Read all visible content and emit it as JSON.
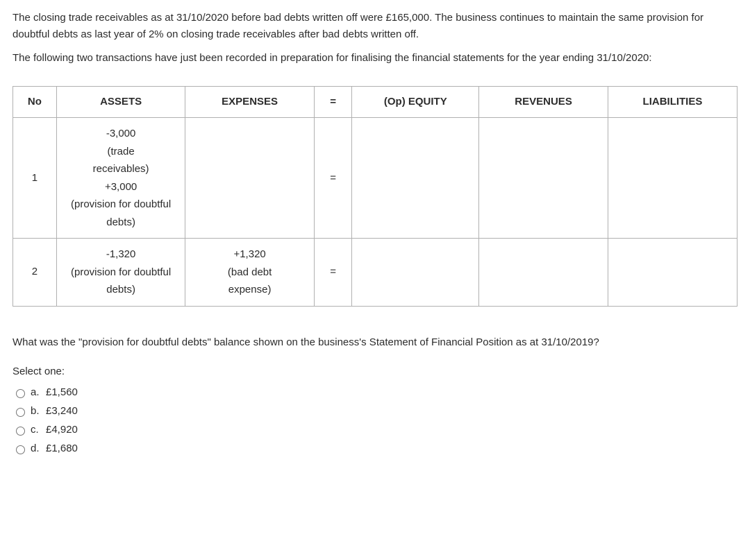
{
  "intro": {
    "p1": "The closing trade receivables as at 31/10/2020 before bad debts written off were £165,000. The business continues to maintain the same provision for doubtful debts as last year of 2% on closing trade receivables after bad debts written off.",
    "p2": "The following two transactions have just been recorded in preparation for finalising the financial statements for the year ending 31/10/2020:"
  },
  "table": {
    "headers": {
      "no": "No",
      "assets": "ASSETS",
      "expenses": "EXPENSES",
      "eq": "=",
      "opequity": "(Op) EQUITY",
      "revenues": "REVENUES",
      "liabilities": "LIABILITIES"
    },
    "rows": [
      {
        "no": "1",
        "assets_l1": "-3,000",
        "assets_l2": "(trade",
        "assets_l3": "receivables)",
        "assets_l4": "+3,000",
        "assets_l5": "(provision for doubtful",
        "assets_l6": "debts)",
        "expenses": "",
        "eq": "=",
        "opequity": "",
        "revenues": "",
        "liabilities": ""
      },
      {
        "no": "2",
        "assets_l1": "-1,320",
        "assets_l2": "(provision for doubtful",
        "assets_l3": "debts)",
        "expenses_l1": "+1,320",
        "expenses_l2": "(bad debt",
        "expenses_l3": "expense)",
        "eq": "=",
        "opequity": "",
        "revenues": "",
        "liabilities": ""
      }
    ]
  },
  "question": "What was the \"provision for doubtful debts\" balance shown on the business's Statement of Financial Position as at 31/10/2019?",
  "select_one": "Select one:",
  "options": [
    {
      "letter": "a.",
      "text": "£1,560"
    },
    {
      "letter": "b.",
      "text": "£3,240"
    },
    {
      "letter": "c.",
      "text": "£4,920"
    },
    {
      "letter": "d.",
      "text": "£1,680"
    }
  ]
}
